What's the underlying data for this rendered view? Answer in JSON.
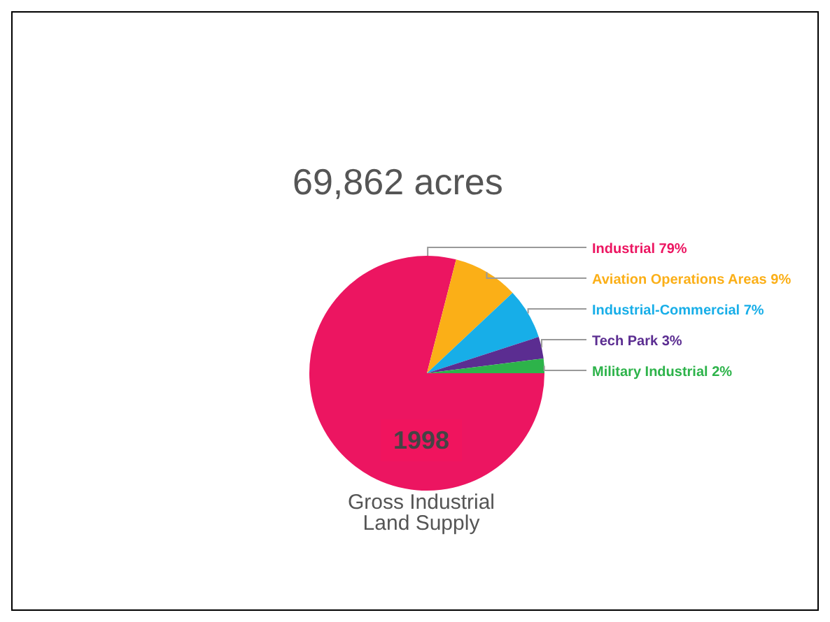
{
  "chart_data": {
    "type": "pie",
    "title": "69,862 acres",
    "categories": [
      "Industrial",
      "Aviation Operations Areas",
      "Industrial-Commercial",
      "Tech Park",
      "Military Industrial"
    ],
    "values": [
      79,
      9,
      7,
      3,
      2
    ],
    "value_labels": [
      "79%",
      "9%",
      "7%",
      "3%",
      "2%"
    ],
    "colors": [
      "#ec1561",
      "#fbaf17",
      "#17aee8",
      "#5b2d91",
      "#2db34a"
    ],
    "annotations": [
      "1998",
      "Gross Industrial Land Supply"
    ]
  }
}
